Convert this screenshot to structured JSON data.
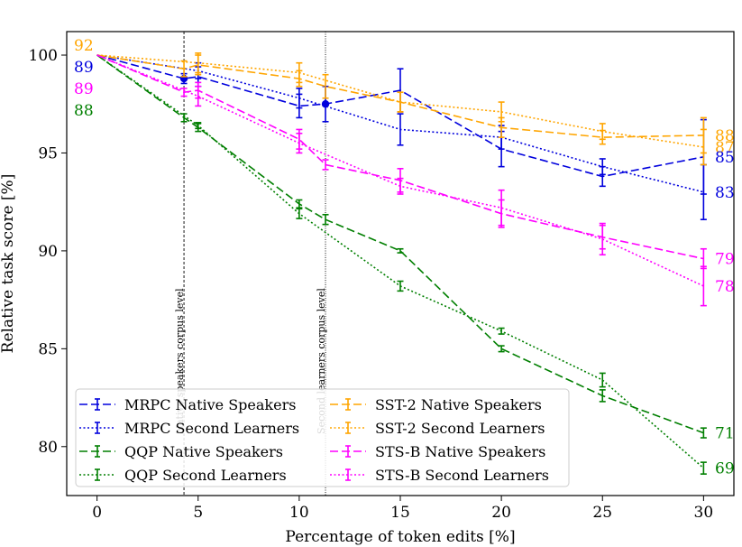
{
  "chart_data": {
    "type": "line",
    "title": "",
    "xlabel": "Percentage of token edits [%]",
    "ylabel": "Relative task score [%]",
    "xlim": [
      -1.5,
      31.5
    ],
    "ylim": [
      77.5,
      101.2
    ],
    "xticks": [
      0,
      5,
      10,
      15,
      20,
      25,
      30
    ],
    "yticks": [
      80,
      85,
      90,
      95,
      100
    ],
    "grid": false,
    "legend": "lower-left",
    "vlines": [
      {
        "x": 4.3,
        "label": "Native speakers corpus level",
        "style": "dashed"
      },
      {
        "x": 11.3,
        "label": "Second learners corpus level",
        "style": "dotted"
      }
    ],
    "series": [
      {
        "name": "MRPC Native Speakers",
        "color": "#0000dd",
        "style": "dashed",
        "x": [
          0,
          4.3,
          5,
          10,
          11.3,
          15,
          20,
          25,
          30
        ],
        "y": [
          100,
          98.8,
          98.9,
          97.4,
          97.5,
          98.2,
          95.2,
          93.8,
          94.8
        ],
        "err": [
          0,
          0.25,
          0.5,
          0.6,
          0.9,
          1.1,
          0.9,
          0.5,
          1.9
        ],
        "marker_x": [
          4.3,
          11.3
        ]
      },
      {
        "name": "MRPC Second Learners",
        "color": "#0000dd",
        "style": "dotted",
        "x": [
          0,
          5,
          10,
          15,
          20,
          25,
          30
        ],
        "y": [
          100,
          99.2,
          97.8,
          96.2,
          95.8,
          94.3,
          93.0
        ],
        "err": [
          0,
          0.4,
          0.5,
          0.8,
          0.6,
          0.4,
          1.4
        ]
      },
      {
        "name": "QQP Native Speakers",
        "color": "#007f00",
        "style": "dashed",
        "x": [
          0,
          4.3,
          5,
          10,
          11.3,
          15,
          20,
          25,
          30
        ],
        "y": [
          100,
          96.8,
          96.3,
          92.4,
          91.6,
          90.0,
          85.0,
          82.6,
          80.7
        ],
        "err": [
          0,
          0.2,
          0.2,
          0.2,
          0.25,
          0.1,
          0.15,
          0.3,
          0.25
        ]
      },
      {
        "name": "QQP Second Learners",
        "color": "#007f00",
        "style": "dotted",
        "x": [
          0,
          5,
          10,
          15,
          20,
          25,
          30
        ],
        "y": [
          100,
          96.4,
          91.9,
          88.2,
          85.9,
          83.4,
          78.9
        ],
        "err": [
          0,
          0.15,
          0.25,
          0.25,
          0.15,
          0.35,
          0.3
        ]
      },
      {
        "name": "SST-2 Native Speakers",
        "color": "#ffa500",
        "style": "dashed",
        "x": [
          0,
          4.3,
          5,
          10,
          11.3,
          15,
          20,
          25,
          30
        ],
        "y": [
          100,
          99.3,
          99.5,
          98.8,
          98.4,
          97.6,
          96.3,
          95.8,
          95.9
        ],
        "err": [
          0,
          0.4,
          0.5,
          0.4,
          0.6,
          0.5,
          0.5,
          0.35,
          0.9
        ]
      },
      {
        "name": "SST-2 Second Learners",
        "color": "#ffa500",
        "style": "dotted",
        "x": [
          0,
          5,
          10,
          15,
          20,
          25,
          30
        ],
        "y": [
          100,
          99.6,
          99.1,
          97.6,
          97.1,
          96.1,
          95.3
        ],
        "err": [
          0,
          0.5,
          0.5,
          0.5,
          0.5,
          0.4,
          0.9
        ]
      },
      {
        "name": "STS-B Native Speakers",
        "color": "#ff00ff",
        "style": "dashed",
        "x": [
          0,
          4.3,
          5,
          10,
          11.3,
          15,
          20,
          25,
          30
        ],
        "y": [
          100,
          98.1,
          98.2,
          95.7,
          94.4,
          93.6,
          91.9,
          90.7,
          89.6
        ],
        "err": [
          0,
          0.2,
          0.4,
          0.5,
          0.25,
          0.6,
          0.7,
          0.6,
          0.5
        ]
      },
      {
        "name": "STS-B Second Learners",
        "color": "#ff00ff",
        "style": "dotted",
        "x": [
          0,
          5,
          10,
          15,
          20,
          25,
          30
        ],
        "y": [
          100,
          97.9,
          95.5,
          93.3,
          92.2,
          90.6,
          88.2
        ],
        "err": [
          0,
          0.5,
          0.5,
          0.4,
          0.9,
          0.8,
          1.0
        ]
      }
    ],
    "start_annotations": [
      {
        "text": "92",
        "color": "#ffa500"
      },
      {
        "text": "89",
        "color": "#0000dd"
      },
      {
        "text": "89",
        "color": "#ff00ff"
      },
      {
        "text": "88",
        "color": "#007f00"
      }
    ],
    "end_annotations": [
      {
        "text": "88",
        "color": "#ffa500",
        "y": 95.9
      },
      {
        "text": "87",
        "color": "#ffa500",
        "y": 95.3
      },
      {
        "text": "85",
        "color": "#0000dd",
        "y": 94.8
      },
      {
        "text": "83",
        "color": "#0000dd",
        "y": 93.0
      },
      {
        "text": "79",
        "color": "#ff00ff",
        "y": 89.6
      },
      {
        "text": "78",
        "color": "#ff00ff",
        "y": 88.2
      },
      {
        "text": "71",
        "color": "#007f00",
        "y": 80.7
      },
      {
        "text": "69",
        "color": "#007f00",
        "y": 78.9
      }
    ]
  }
}
